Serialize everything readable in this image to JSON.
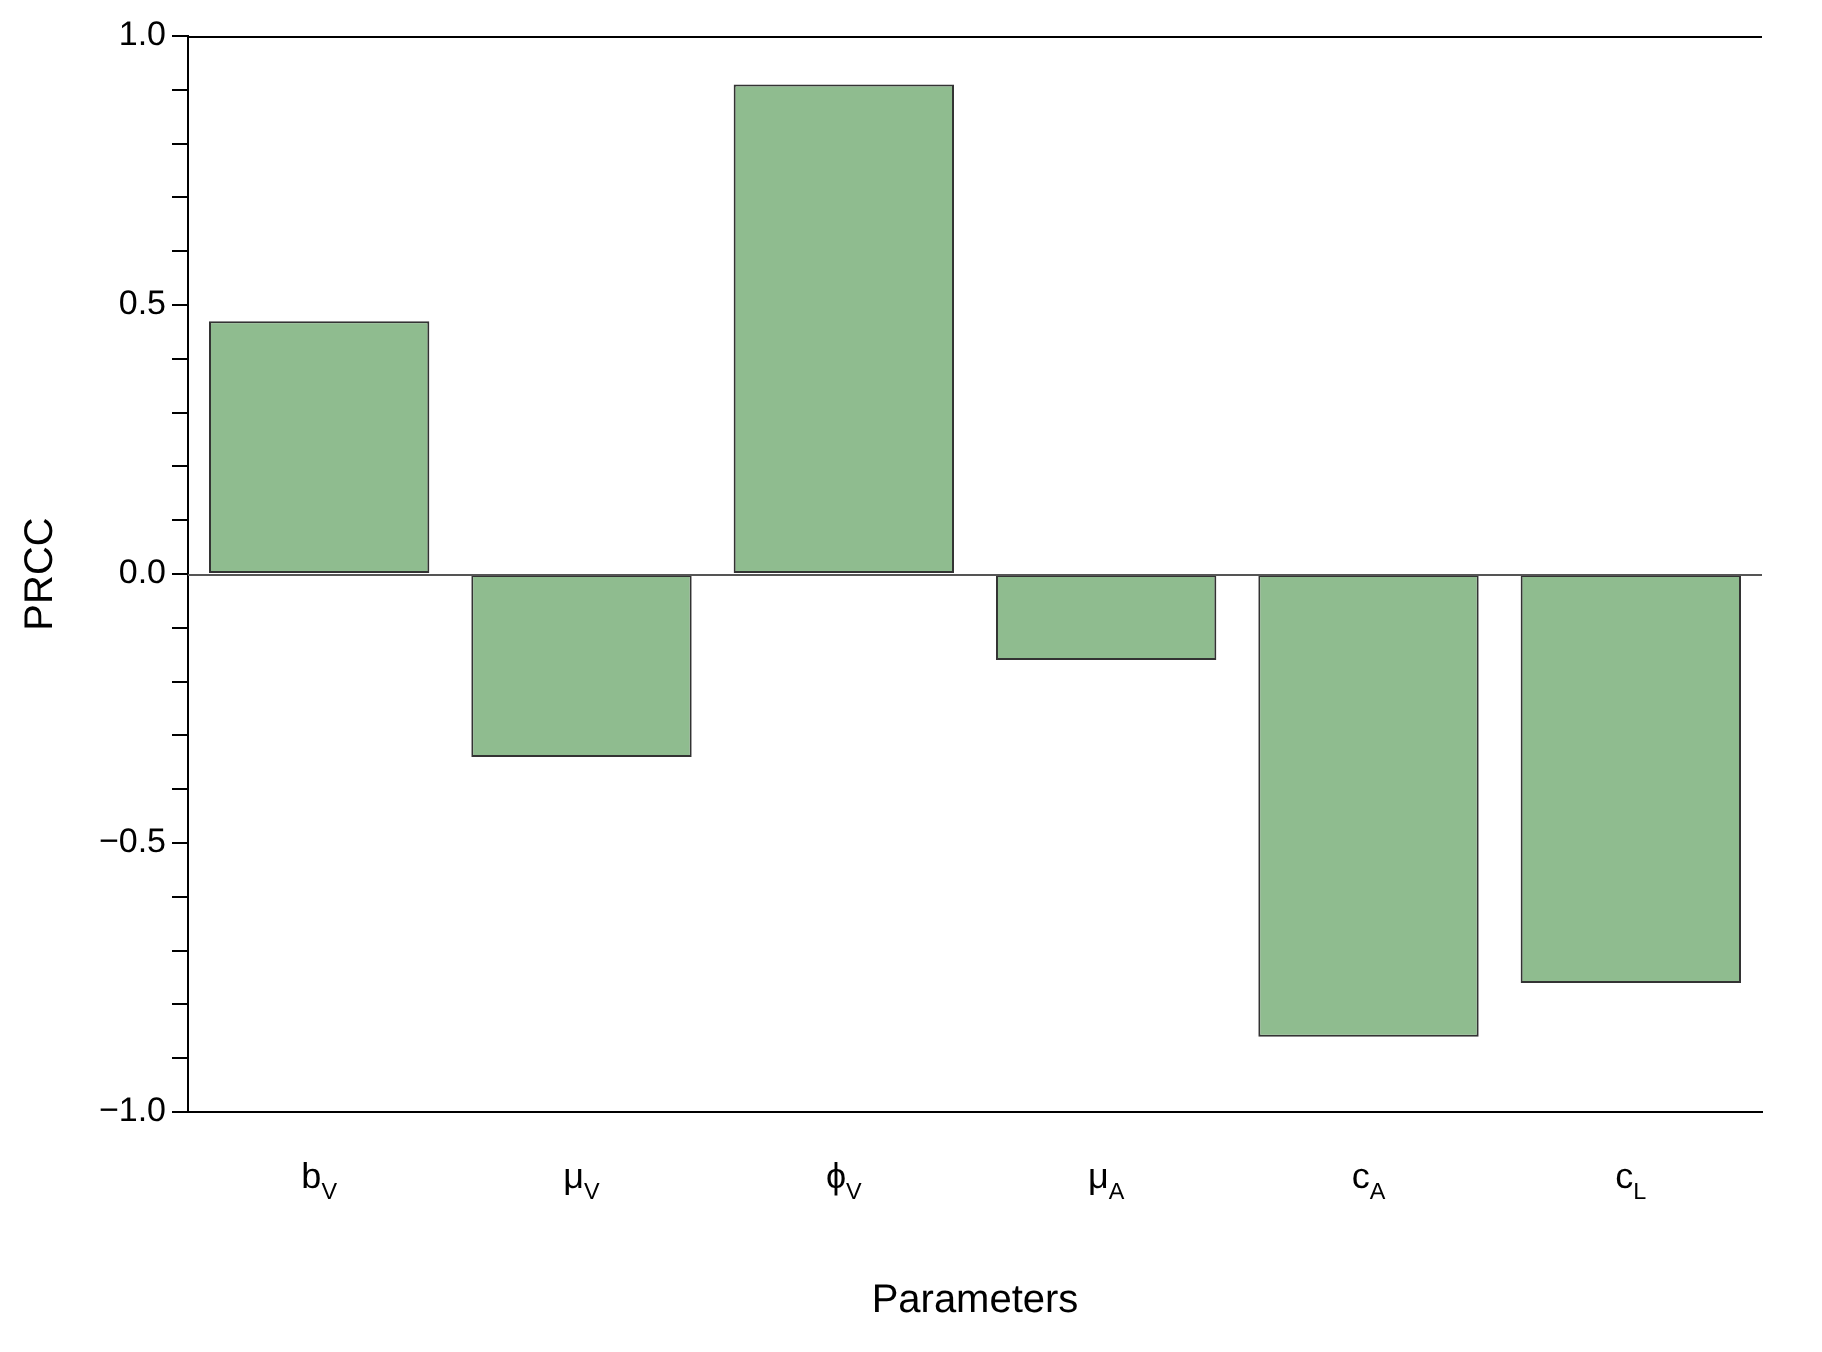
{
  "chart_data": {
    "type": "bar",
    "xlabel": "Parameters",
    "ylabel": "PRCC",
    "categories": [
      "b$_{V}$",
      "μ$_{V}$",
      "ϕ$_{V}$",
      "μ$_{A}$",
      "c$_{A}$",
      "c$_{L}$"
    ],
    "values": [
      0.47,
      -0.34,
      0.91,
      -0.16,
      -0.86,
      -0.76
    ],
    "color": "#8fbc8f",
    "ylim": [
      -1,
      1
    ],
    "yticks": [
      {
        "value": -1,
        "label": "−1.0"
      },
      {
        "value": -0.9,
        "label": null
      },
      {
        "value": -0.8,
        "label": null
      },
      {
        "value": -0.7,
        "label": null
      },
      {
        "value": -0.6,
        "label": null
      },
      {
        "value": -0.5,
        "label": "−0.5"
      },
      {
        "value": -0.4,
        "label": null
      },
      {
        "value": -0.3,
        "label": null
      },
      {
        "value": -0.2,
        "label": null
      },
      {
        "value": -0.1,
        "label": null
      },
      {
        "value": 0,
        "label": "0.0"
      },
      {
        "value": 0.1,
        "label": null
      },
      {
        "value": 0.2,
        "label": null
      },
      {
        "value": 0.3,
        "label": null
      },
      {
        "value": 0.4,
        "label": null
      },
      {
        "value": 0.5,
        "label": "0.5"
      },
      {
        "value": 0.6,
        "label": null
      },
      {
        "value": 0.7,
        "label": null
      },
      {
        "value": 0.8,
        "label": null
      },
      {
        "value": 0.9,
        "label": null
      },
      {
        "value": 1,
        "label": "1.0"
      }
    ],
    "ref_lines": [
      {
        "axis": "y",
        "value": 0,
        "color": "#555555"
      }
    ],
    "grid": false,
    "legend": false
  }
}
